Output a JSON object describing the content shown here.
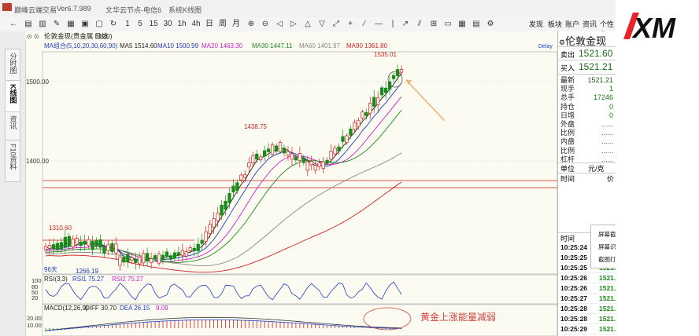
{
  "titlebar": {
    "app_name": "巅峰云端交易",
    "version": "Ver6.7.989",
    "node": "文华云节点-电信6",
    "system": "系统K线图"
  },
  "toolbar": {
    "periods": [
      "1",
      "5",
      "15",
      "30",
      "1h",
      "4h",
      "日",
      "周",
      "月"
    ],
    "right_items": [
      "发现",
      "板块",
      "账户",
      "资讯",
      "个性化"
    ]
  },
  "sidebar_tabs": [
    "分时图",
    "K线图",
    "资讯",
    "F10资料"
  ],
  "chart": {
    "header": {
      "instrument": "伦敦金现(贵金属 5120)",
      "period": "日线"
    },
    "ma_label": "MA组合(5,10,20,30,60,90)",
    "ma_values": [
      {
        "label": "MA5 1514.60",
        "color": "#222222"
      },
      {
        "label": "MA10 1500.99",
        "color": "#1f3fbf"
      },
      {
        "label": "MA20 1463.30",
        "color": "#cc22cc"
      },
      {
        "label": "MA30 1447.11",
        "color": "#1a8a1a"
      },
      {
        "label": "MA60 1401.97",
        "color": "#888888"
      },
      {
        "label": "MA90 1361.80",
        "color": "#d02020"
      }
    ],
    "delay_label": "Delay",
    "price_labels": [
      "1500.00",
      "1400.00"
    ],
    "annotations": {
      "high": "1535.01",
      "mid_high": "1438.75",
      "left_high": "1310.60",
      "low": "1266.19"
    },
    "days_label": "96天",
    "rsi": {
      "title": "RSI(3,3)",
      "rsi1": "RSI1 75.27",
      "rsi2": "RSI2 75.27",
      "ticks": [
        "100",
        "80",
        "50",
        "20"
      ]
    },
    "macd": {
      "title": "MACD(12,26,9)",
      "diff": "DIFF 30.70",
      "dea": "DEA 26.15",
      "macd": "9.09",
      "ticks": [
        "20.00",
        "10.00"
      ]
    },
    "callout_text": "黄金上涨能量减弱"
  },
  "quote": {
    "name": "伦敦金现",
    "sell_label": "卖出",
    "sell_price": "1521.60",
    "buy_label": "买入",
    "buy_price": "1521.21",
    "rows": [
      {
        "label": "最新",
        "value": "1521.21"
      },
      {
        "label": "现手",
        "value": "1"
      },
      {
        "label": "总手",
        "value": "17246"
      },
      {
        "label": "持仓",
        "value": "0"
      },
      {
        "label": "日增",
        "value": "0"
      },
      {
        "label": "外盘",
        "value": "......"
      },
      {
        "label": "比例",
        "value": "......"
      },
      {
        "label": "内盘",
        "value": "......"
      },
      {
        "label": "比例",
        "value": "......"
      },
      {
        "label": "杠杆",
        "value": "......"
      }
    ],
    "unit_label": "单位",
    "unit_value": "元/克",
    "time_label": "时间",
    "price_label": "价",
    "ticks_header": "时间",
    "ticks": [
      {
        "time": "10:25:24",
        "price": "1521."
      },
      {
        "time": "10:25:25",
        "price": "1521."
      },
      {
        "time": "10:25:25",
        "price": "1521."
      },
      {
        "time": "10:25:26",
        "price": "1521."
      },
      {
        "time": "10:25:26",
        "price": "1521."
      },
      {
        "time": "10:25:27",
        "price": "1521."
      },
      {
        "time": "10:25:28",
        "price": "1521."
      },
      {
        "time": "10:25:28",
        "price": "1521."
      },
      {
        "time": "10:25:29",
        "price": "1521."
      }
    ]
  },
  "context_menu": [
    "屏幕截",
    "屏幕识",
    "截图打"
  ],
  "logo": {
    "text": "XM",
    "color": "#e8232a"
  }
}
